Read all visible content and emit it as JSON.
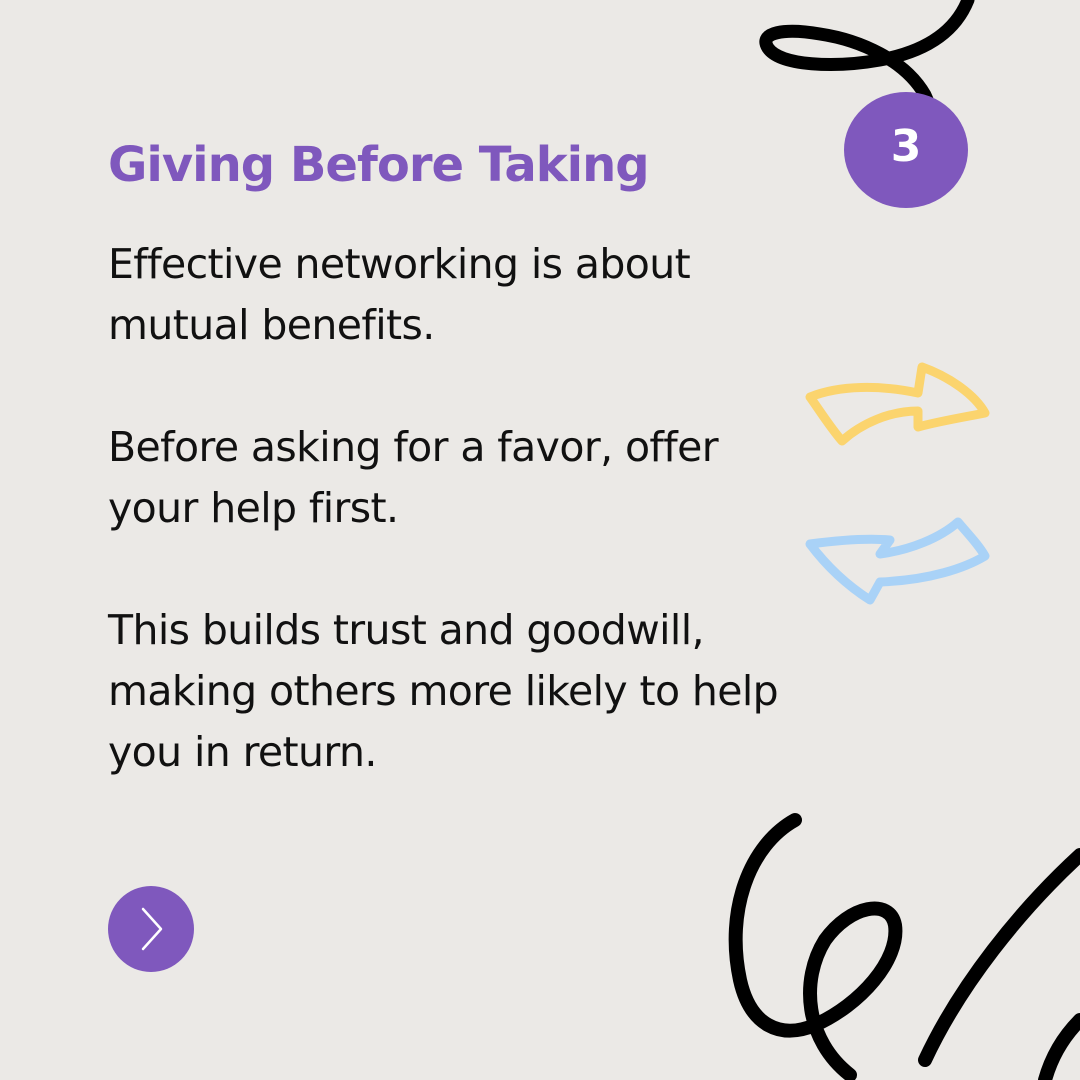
{
  "slide": {
    "title": "Giving Before Taking",
    "page_number": "3",
    "paragraphs": [
      "Effective networking is about\nmutual benefits.",
      "Before asking for a favor, offer\nyour help first.",
      "This builds trust and goodwill,\nmaking others more likely to help\nyou in return."
    ]
  },
  "navigation": {
    "next_icon": "chevron-right-icon"
  },
  "decorations": {
    "top_scribble": "loop-scribble",
    "right_arrow": "arrow-right-outline",
    "left_arrow": "arrow-left-outline",
    "bottom_scribble": "swirl-scribble"
  },
  "colors": {
    "background": "#ebe9e6",
    "accent_purple": "#7f58bd",
    "text": "#111111",
    "arrow_yellow": "#fbd46e",
    "arrow_blue": "#a9d2f7",
    "scribble": "#000000"
  }
}
